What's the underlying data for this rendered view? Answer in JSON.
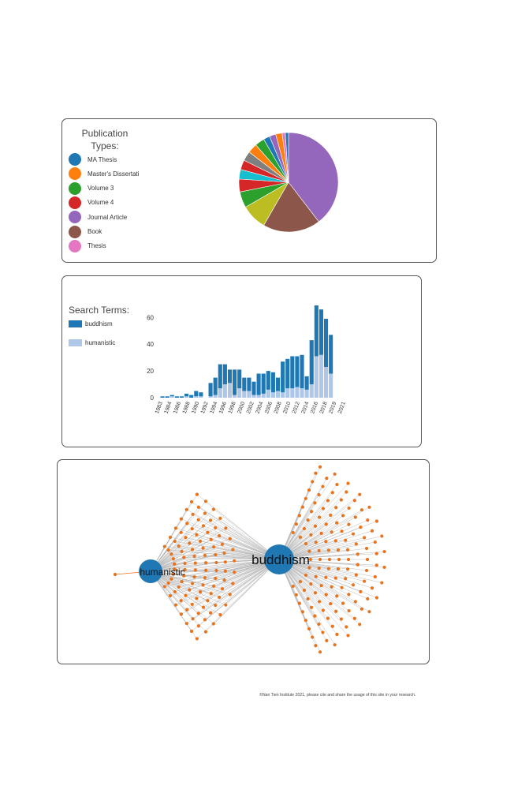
{
  "pie_legend": {
    "title_line1": "Publication",
    "title_line2": "Types:",
    "items": [
      {
        "label": "MA Thesis",
        "color": "#1f77b4"
      },
      {
        "label": "Master's Dissertati",
        "color": "#ff7f0e"
      },
      {
        "label": "Volume 3",
        "color": "#2ca02c"
      },
      {
        "label": "Volume 4",
        "color": "#d62728"
      },
      {
        "label": "Journal Article",
        "color": "#9467bd"
      },
      {
        "label": "Book",
        "color": "#8c564b"
      },
      {
        "label": "Thesis",
        "color": "#e377c2"
      }
    ]
  },
  "bar_legend": {
    "title": "Search Terms:",
    "items": [
      {
        "label": "buddhism",
        "color": "#1f77b4"
      },
      {
        "label": "humanistic",
        "color": "#aec7e8"
      }
    ]
  },
  "network": {
    "hub_large": "buddhism",
    "hub_small": "humanistic",
    "hub_color": "#1f77b4",
    "node_color": "#e8731a",
    "edge_color": "#b3b3b3"
  },
  "footer": {
    "text": "©Nan Tien Institute 2021, please cite and share the usage of this site in your research."
  },
  "chart_data": [
    {
      "type": "pie",
      "slices": [
        {
          "color": "#9467bd",
          "value": 38
        },
        {
          "color": "#8c564b",
          "value": 18
        },
        {
          "color": "#bcbd22",
          "value": 8
        },
        {
          "color": "#2ca02c",
          "value": 5
        },
        {
          "color": "#d62728",
          "value": 4
        },
        {
          "color": "#17becf",
          "value": 3
        },
        {
          "color": "#d62728",
          "value": 3
        },
        {
          "color": "#7f7f7f",
          "value": 3
        },
        {
          "color": "#ff7f0e",
          "value": 3
        },
        {
          "color": "#2ca02c",
          "value": 3
        },
        {
          "color": "#1f77b4",
          "value": 2
        },
        {
          "color": "#9467bd",
          "value": 2
        },
        {
          "color": "#ff7f0e",
          "value": 2
        },
        {
          "color": "#e377c2",
          "value": 1
        },
        {
          "color": "#1f77b4",
          "value": 1
        }
      ]
    },
    {
      "type": "bar",
      "stacked": true,
      "categories": [
        "1983",
        "1984",
        "1985",
        "1986",
        "1987",
        "1988",
        "1989",
        "1990",
        "1991",
        "1992",
        "1993",
        "1994",
        "1995",
        "1996",
        "1997",
        "1998",
        "1999",
        "2000",
        "2001",
        "2002",
        "2003",
        "2004",
        "2005",
        "2006",
        "2007",
        "2008",
        "2009",
        "2010",
        "2011",
        "2012",
        "2013",
        "2014",
        "2015",
        "2016",
        "2017",
        "2018",
        "2019",
        "2020",
        "2021"
      ],
      "tick_labels": [
        "1983",
        "1984",
        "1986",
        "1988",
        "1990",
        "1992",
        "1994",
        "1996",
        "1998",
        "2000",
        "2002",
        "2004",
        "2006",
        "2008",
        "2010",
        "2012",
        "2014",
        "2016",
        "2018",
        "2019",
        "2021"
      ],
      "series": [
        {
          "name": "humanistic",
          "values": [
            0,
            0,
            1,
            0,
            0,
            1,
            0,
            1,
            1,
            0,
            1,
            2,
            7,
            10,
            11,
            2,
            7,
            5,
            5,
            2,
            2,
            3,
            6,
            4,
            5,
            4,
            7,
            7,
            8,
            7,
            6,
            10,
            31,
            32,
            23,
            18,
            0,
            0,
            0
          ]
        },
        {
          "name": "buddhism",
          "values": [
            1,
            1,
            1,
            1,
            1,
            2,
            2,
            4,
            3,
            0,
            10,
            13,
            18,
            15,
            10,
            19,
            14,
            10,
            10,
            10,
            16,
            15,
            14,
            15,
            10,
            23,
            22,
            24,
            23,
            25,
            10,
            33,
            38,
            34,
            36,
            29,
            0,
            0,
            0
          ]
        }
      ],
      "yticks": [
        0,
        20,
        40,
        60
      ],
      "ylim": [
        0,
        72
      ]
    },
    {
      "type": "network",
      "nodes": [
        {
          "label": "buddhism"
        },
        {
          "label": "humanistic"
        }
      ]
    }
  ]
}
